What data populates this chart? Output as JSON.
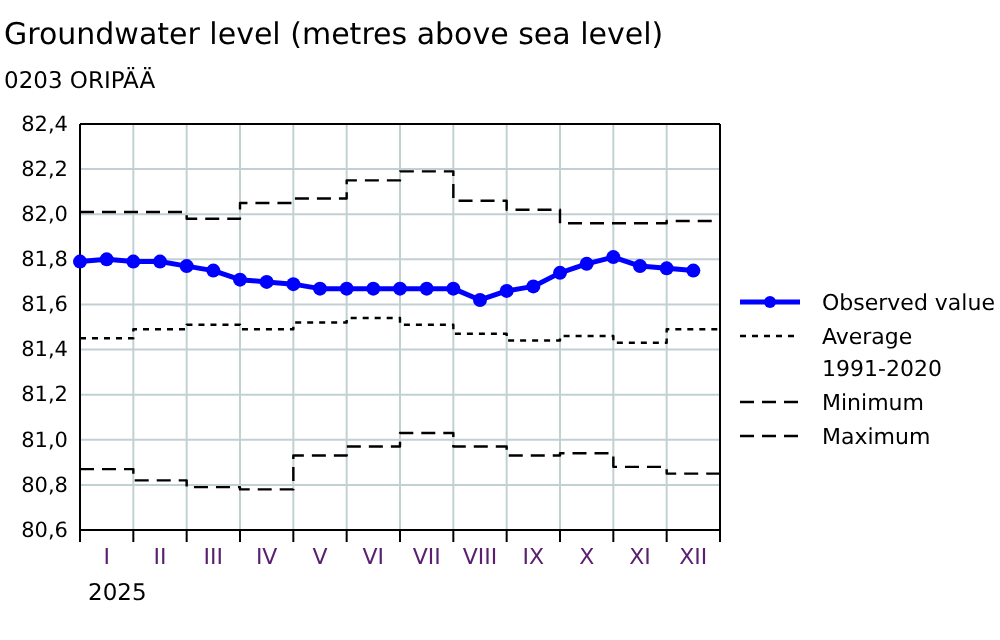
{
  "chart_data": {
    "type": "line",
    "title": "Groundwater level (metres above sea level)",
    "subtitle": "0203 ORIPÄÄ",
    "xlabel": "2025",
    "categories": [
      null,
      "I",
      null,
      "II",
      null,
      "III",
      null,
      "IV",
      null,
      "V",
      null,
      "VI",
      null,
      "VII",
      null,
      "VIII",
      null,
      "IX",
      null,
      "X",
      null,
      "XI",
      null,
      "XII",
      null
    ],
    "ylim": [
      80.6,
      82.4
    ],
    "yticks": [
      {
        "value": 80.6,
        "label": "80,6"
      },
      {
        "value": 80.8,
        "label": "80,8"
      },
      {
        "value": 81.0,
        "label": "81,0"
      },
      {
        "value": 81.2,
        "label": "81,2"
      },
      {
        "value": 81.4,
        "label": "81,4"
      },
      {
        "value": 81.6,
        "label": "81,6"
      },
      {
        "value": 81.8,
        "label": "81,8"
      },
      {
        "value": 82.0,
        "label": "82,0"
      },
      {
        "value": 82.2,
        "label": "82,2"
      },
      {
        "value": 82.4,
        "label": "82,4"
      }
    ],
    "grid": true,
    "legend": "right",
    "series": [
      {
        "name": "Observed value",
        "color": "#0000ff",
        "marker": "circle",
        "line_style": "solid",
        "values": [
          81.79,
          81.8,
          81.79,
          81.79,
          81.77,
          81.75,
          81.71,
          81.7,
          81.69,
          81.67,
          81.67,
          81.67,
          81.67,
          81.67,
          81.67,
          81.62,
          81.66,
          81.68,
          81.74,
          81.78,
          81.81,
          81.77,
          81.76,
          81.75,
          null
        ]
      },
      {
        "name": "Average 1991-2020",
        "type": "step",
        "color": "#000000",
        "marker": "none",
        "line_style": "dotted",
        "values": [
          81.45,
          81.45,
          81.49,
          81.49,
          81.51,
          81.51,
          81.49,
          81.49,
          81.52,
          81.52,
          81.54,
          81.54,
          81.51,
          81.51,
          81.47,
          81.47,
          81.44,
          81.44,
          81.46,
          81.46,
          81.43,
          81.43,
          81.49,
          81.49,
          81.49
        ]
      },
      {
        "name": "Minimum",
        "type": "step",
        "color": "#000000",
        "marker": "none",
        "line_style": "dashed",
        "values": [
          80.87,
          80.87,
          80.82,
          80.82,
          80.79,
          80.79,
          80.78,
          80.78,
          80.93,
          80.93,
          80.97,
          80.97,
          81.03,
          81.03,
          80.97,
          80.97,
          80.93,
          80.93,
          80.94,
          80.94,
          80.88,
          80.88,
          80.85,
          80.85,
          80.85
        ]
      },
      {
        "name": "Maximum",
        "type": "step",
        "color": "#000000",
        "marker": "none",
        "line_style": "dashed",
        "values": [
          82.01,
          82.01,
          82.01,
          82.01,
          81.98,
          81.98,
          82.05,
          82.05,
          82.07,
          82.07,
          82.15,
          82.15,
          82.19,
          82.19,
          82.06,
          82.06,
          82.02,
          82.02,
          81.96,
          81.96,
          81.96,
          81.96,
          81.97,
          81.97,
          81.97
        ]
      }
    ]
  }
}
